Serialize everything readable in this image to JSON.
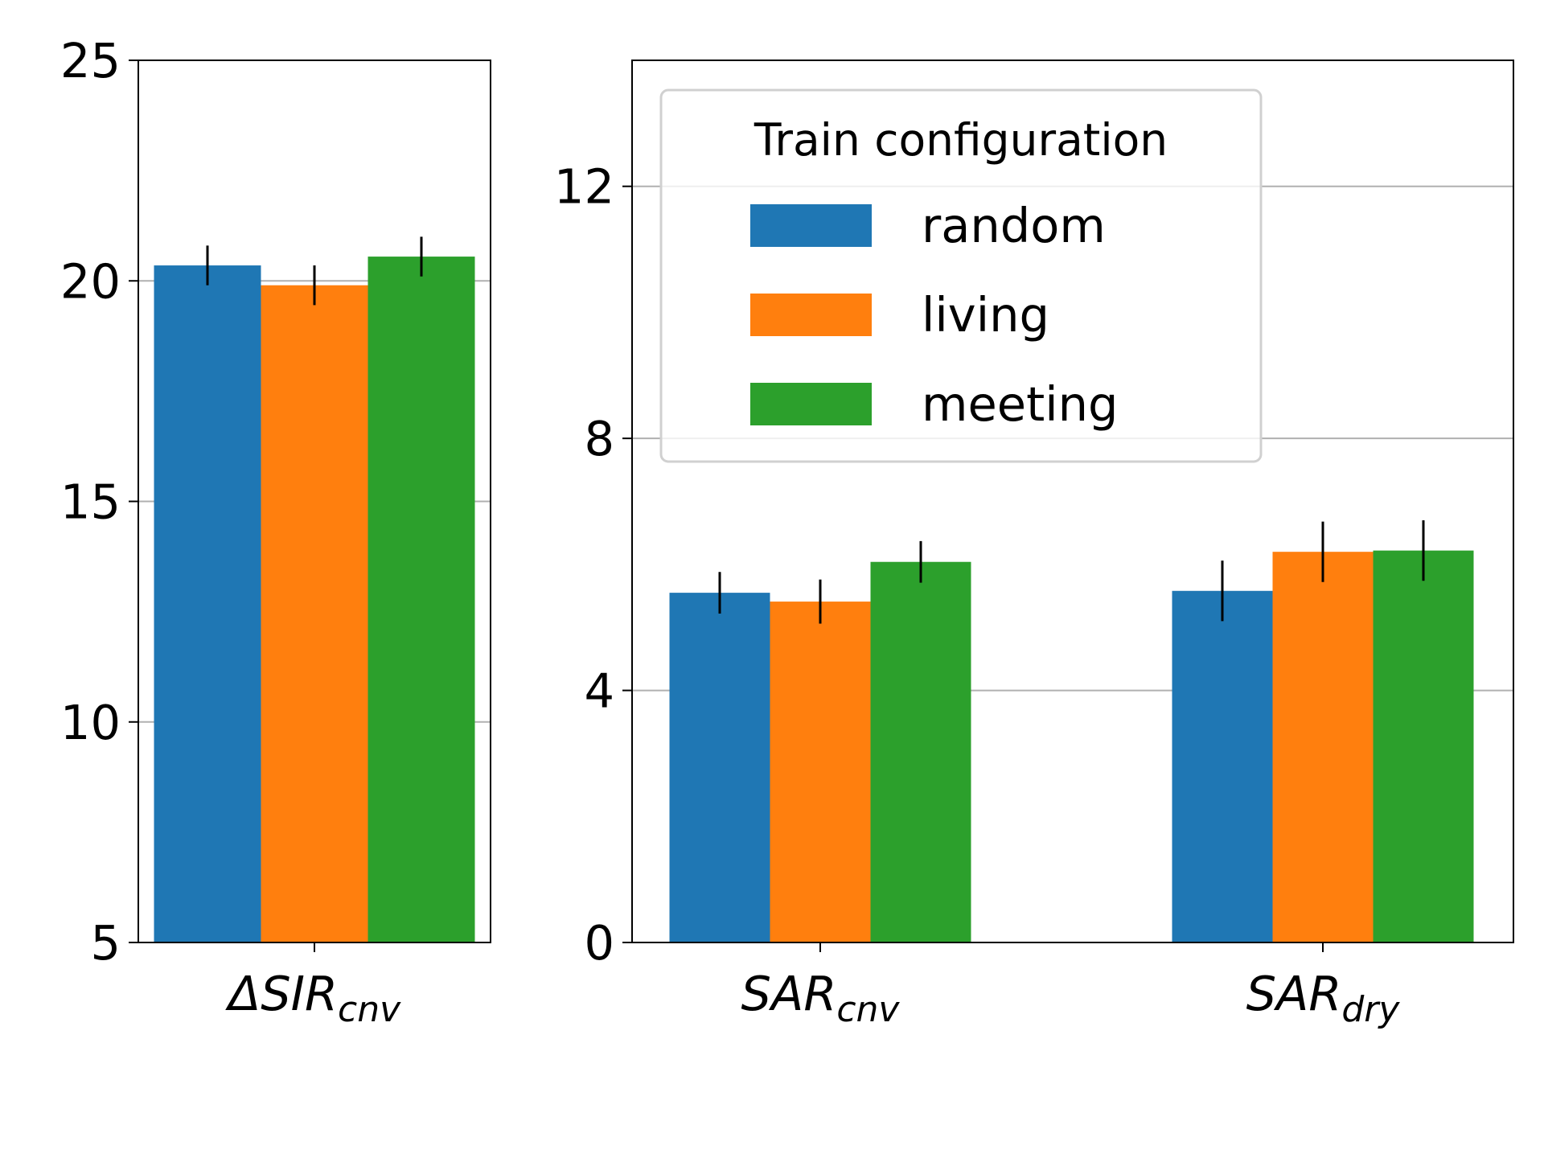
{
  "chart_data": [
    {
      "type": "bar",
      "categories": [
        {
          "main": "ΔSIR",
          "sub": "cnv"
        }
      ],
      "series": [
        {
          "name": "random",
          "color": "#1f77b4",
          "values": [
            20.35
          ],
          "errors": [
            0.45
          ]
        },
        {
          "name": "living",
          "color": "#ff7f0e",
          "values": [
            19.9
          ],
          "errors": [
            0.45
          ]
        },
        {
          "name": "meeting",
          "color": "#2ca02c",
          "values": [
            20.55
          ],
          "errors": [
            0.45
          ]
        }
      ],
      "ylim": [
        5,
        25
      ],
      "yticks": [
        "5",
        "10",
        "15",
        "20",
        "25"
      ],
      "grid": "y",
      "error_color": "#000000"
    },
    {
      "type": "bar",
      "categories": [
        {
          "main": "SAR",
          "sub": "cnv"
        },
        {
          "main": "SAR",
          "sub": "dry"
        }
      ],
      "series": [
        {
          "name": "random",
          "color": "#1f77b4",
          "values": [
            5.55,
            5.58
          ],
          "errors": [
            0.33,
            0.48
          ]
        },
        {
          "name": "living",
          "color": "#ff7f0e",
          "values": [
            5.41,
            6.2
          ],
          "errors": [
            0.35,
            0.48
          ]
        },
        {
          "name": "meeting",
          "color": "#2ca02c",
          "values": [
            6.04,
            6.22
          ],
          "errors": [
            0.33,
            0.48
          ]
        }
      ],
      "ylim": [
        0,
        14
      ],
      "yticks": [
        "0",
        "4",
        "8",
        "12"
      ],
      "grid": "y",
      "legend": {
        "title": "Train configuration",
        "placement": "upper-left",
        "entries": [
          "random",
          "living",
          "meeting"
        ]
      }
    }
  ]
}
